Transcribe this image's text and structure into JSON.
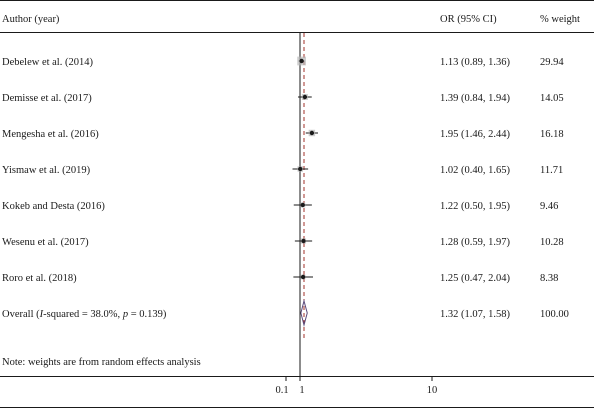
{
  "header": {
    "study": "Author (year)",
    "ci": "OR (95% CI)",
    "weight": "% weight"
  },
  "note": "Note: weights are from random effects analysis",
  "chart_data": {
    "type": "forest",
    "xlim": [
      0.1,
      10
    ],
    "null_value": 1,
    "pooled_estimate": 1.32,
    "x_ticks": [
      {
        "value": 0.1,
        "label": "0.1"
      },
      {
        "value": 1,
        "label": "1"
      },
      {
        "value": 10,
        "label": "10"
      }
    ],
    "studies": [
      {
        "label": "Debelew et al. (2014)",
        "or": 1.13,
        "lo": 0.89,
        "hi": 1.36,
        "ci_text": "1.13 (0.89, 1.36)",
        "weight": 29.94,
        "weight_text": "29.94"
      },
      {
        "label": "Demisse et al. (2017)",
        "or": 1.39,
        "lo": 0.84,
        "hi": 1.94,
        "ci_text": "1.39 (0.84, 1.94)",
        "weight": 14.05,
        "weight_text": "14.05"
      },
      {
        "label": "Mengesha et al. (2016)",
        "or": 1.95,
        "lo": 1.46,
        "hi": 2.44,
        "ci_text": "1.95 (1.46, 2.44)",
        "weight": 16.18,
        "weight_text": "16.18"
      },
      {
        "label": "Yismaw et al. (2019)",
        "or": 1.02,
        "lo": 0.4,
        "hi": 1.65,
        "ci_text": "1.02 (0.40, 1.65)",
        "weight": 11.71,
        "weight_text": "11.71"
      },
      {
        "label": "Kokeb and Desta (2016)",
        "or": 1.22,
        "lo": 0.5,
        "hi": 1.95,
        "ci_text": "1.22 (0.50, 1.95)",
        "weight": 9.46,
        "weight_text": "9.46"
      },
      {
        "label": "Wesenu et al. (2017)",
        "or": 1.28,
        "lo": 0.59,
        "hi": 1.97,
        "ci_text": "1.28 (0.59, 1.97)",
        "weight": 10.28,
        "weight_text": "10.28"
      },
      {
        "label": "Roro et al. (2018)",
        "or": 1.25,
        "lo": 0.47,
        "hi": 2.04,
        "ci_text": "1.25 (0.47, 2.04)",
        "weight": 8.38,
        "weight_text": "8.38"
      }
    ],
    "overall": {
      "label_prefix": "Overall (",
      "label_i": "I",
      "label_mid": "-squared = 38.0%, ",
      "label_p": "p",
      "label_end": " = 0.139)",
      "or": 1.32,
      "lo": 1.07,
      "hi": 1.58,
      "ci_text": "1.32 (1.07, 1.58)",
      "weight_text": "100.00"
    },
    "colors": {
      "line": "#1a1a1a",
      "ref_line": "#a0302a",
      "marker": "#1a1a1a",
      "weight_box": "#b8b8b8",
      "diamond": "#5a4a7a"
    }
  }
}
